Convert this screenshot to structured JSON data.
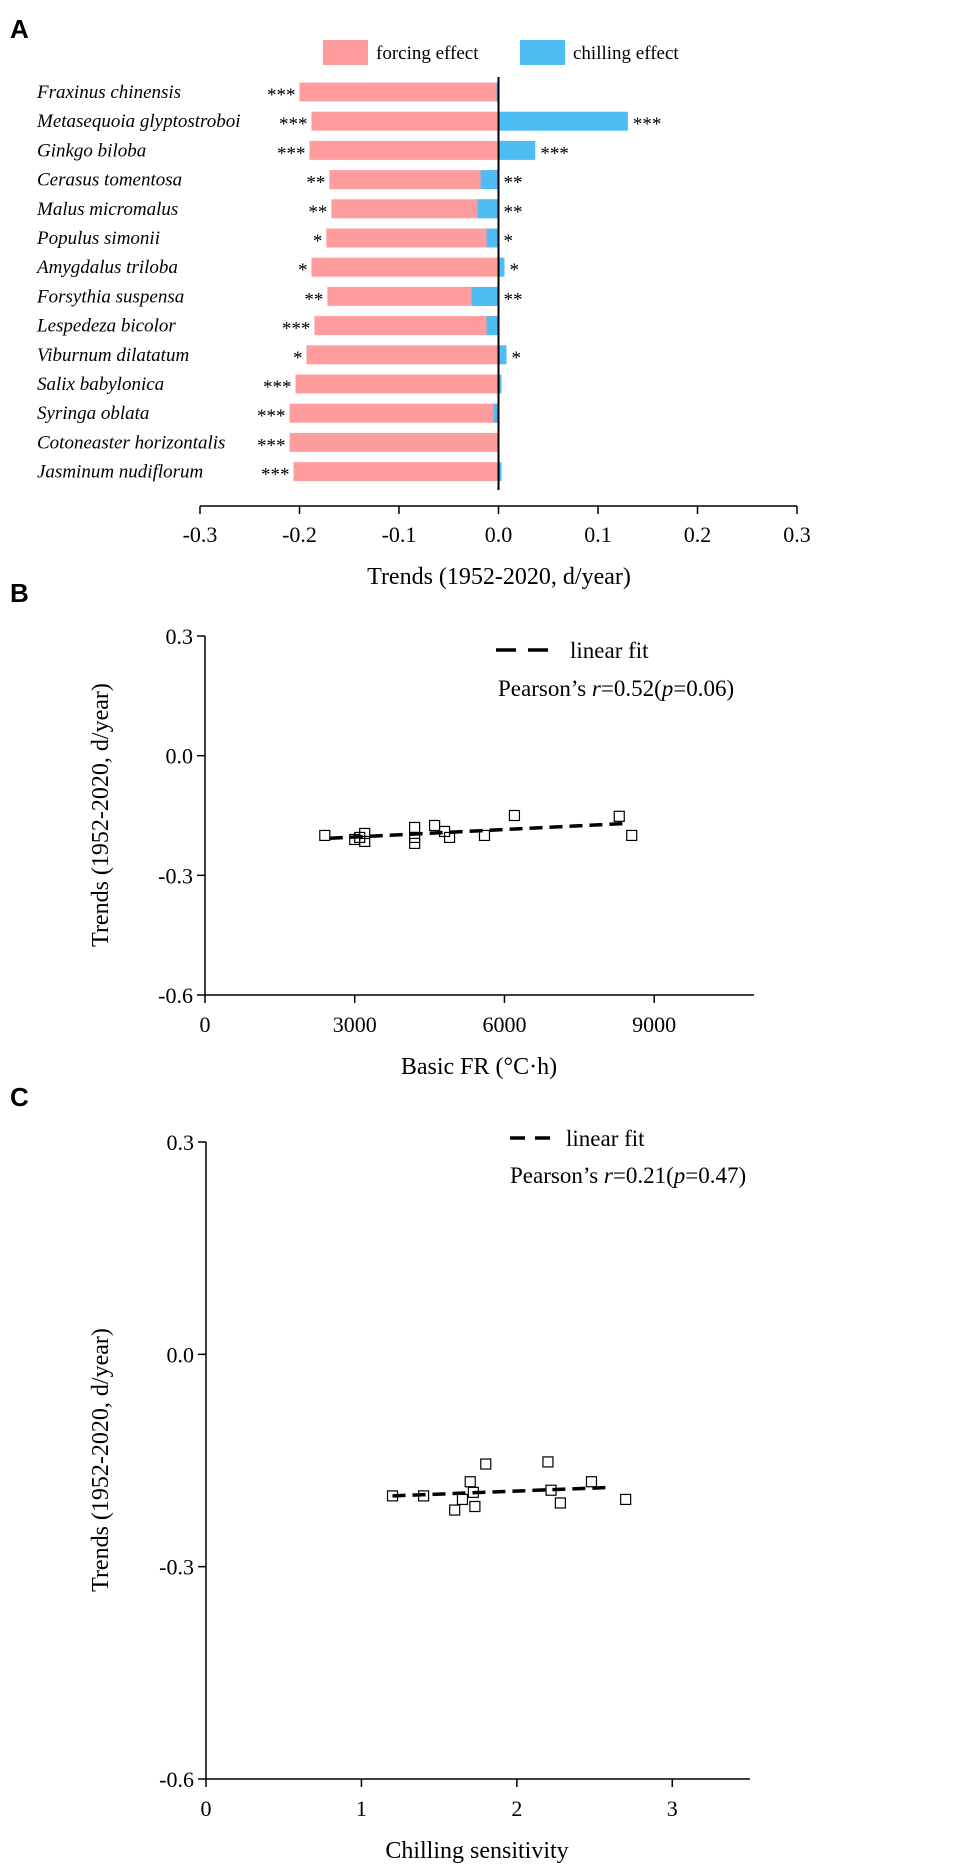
{
  "colors": {
    "forcing": "#FF9C9E",
    "chilling": "#4DBDF4",
    "axis": "#000000"
  },
  "panels": [
    {
      "label": "A",
      "chart_data": {
        "type": "bar",
        "orientation": "horizontal",
        "stacked": true,
        "categories": [
          "Fraxinus chinensis",
          "Metasequoia glyptostroboi",
          "Ginkgo biloba",
          "Cerasus tomentosa",
          "Malus micromalus",
          "Populus simonii",
          "Amygdalus triloba",
          "Forsythia suspensa",
          "Lespedeza bicolor",
          "Viburnum dilatatum",
          "Salix babylonica",
          "Syringa oblata",
          "Cotoneaster horizontalis",
          "Jasminum nudiflorum"
        ],
        "series": [
          {
            "name": "forcing effect",
            "color": "#FF9C9E",
            "values": [
              -0.2,
              -0.188,
              -0.19,
              -0.17,
              -0.168,
              -0.173,
              -0.188,
              -0.172,
              -0.185,
              -0.193,
              -0.204,
              -0.21,
              -0.21,
              -0.206
            ]
          },
          {
            "name": "chilling effect",
            "color": "#4DBDF4",
            "values": [
              -0.002,
              0.13,
              0.037,
              -0.018,
              -0.021,
              -0.012,
              0.006,
              -0.027,
              -0.012,
              0.008,
              0.003,
              -0.005,
              0.001,
              0.003
            ]
          }
        ],
        "significance": [
          "***",
          "***",
          "***",
          "**",
          "**",
          "*",
          "*",
          "**",
          "***",
          "*",
          "***",
          "***",
          "***",
          "***"
        ],
        "chilling_significance": [
          "",
          "***",
          "***",
          "**",
          "**",
          "*",
          "*",
          "**",
          "",
          "*",
          "",
          "",
          "",
          ""
        ],
        "xlabel": "Trends (1952-2020, d/year)",
        "xlim": [
          -0.3,
          0.3
        ],
        "xticks": [
          "-0.3",
          "-0.2",
          "-0.1",
          "0.0",
          "0.1",
          "0.2",
          "0.3"
        ],
        "legend": [
          "forcing effect",
          "chilling effect"
        ],
        "legend_position": "top-right"
      }
    },
    {
      "label": "B",
      "chart_data": {
        "type": "scatter",
        "x": [
          2400,
          3000,
          3100,
          3200,
          3200,
          4200,
          4200,
          4200,
          4600,
          4800,
          4900,
          5600,
          6200,
          8300,
          8550
        ],
        "y": [
          -0.2,
          -0.21,
          -0.205,
          -0.215,
          -0.195,
          -0.18,
          -0.205,
          -0.22,
          -0.175,
          -0.19,
          -0.205,
          -0.2,
          -0.15,
          -0.152,
          -0.2
        ],
        "fit": {
          "x": [
            2500,
            8400
          ],
          "y": [
            -0.207,
            -0.17
          ]
        },
        "legend_label": "linear fit",
        "annotation_prefix": "Pearson’s ",
        "annotation_r": "r",
        "annotation_mid": "=0.52(",
        "annotation_p": "p",
        "annotation_suffix": "=0.06)",
        "xlabel": "Basic FR (°C·h)",
        "ylabel": "Trends (1952-2020, d/year)",
        "xlim": [
          0,
          11000
        ],
        "ylim": [
          -0.6,
          0.3
        ],
        "xticks": [
          "0",
          "3000",
          "6000",
          "9000"
        ],
        "yticks": [
          "0.3",
          "0.0",
          "-0.3",
          "-0.6"
        ]
      }
    },
    {
      "label": "C",
      "chart_data": {
        "type": "scatter",
        "x": [
          1.2,
          1.4,
          1.6,
          1.65,
          1.7,
          1.72,
          1.73,
          1.8,
          2.2,
          2.22,
          2.28,
          2.48,
          2.7
        ],
        "y": [
          -0.2,
          -0.2,
          -0.22,
          -0.205,
          -0.18,
          -0.195,
          -0.215,
          -0.155,
          -0.152,
          -0.192,
          -0.21,
          -0.18,
          -0.205
        ],
        "fit": {
          "x": [
            1.2,
            2.6
          ],
          "y": [
            -0.2,
            -0.188
          ]
        },
        "legend_label": "linear fit",
        "annotation_prefix": "Pearson’s ",
        "annotation_r": "r",
        "annotation_mid": "=0.21(",
        "annotation_p": "p",
        "annotation_suffix": "=0.47)",
        "xlabel": "Chilling sensitivity",
        "ylabel": "Trends (1952-2020, d/year)",
        "xlim": [
          0,
          3.5
        ],
        "ylim": [
          -0.6,
          0.3
        ],
        "xticks": [
          "0",
          "1",
          "2",
          "3"
        ],
        "yticks": [
          "0.3",
          "0.0",
          "-0.3",
          "-0.6"
        ]
      }
    }
  ]
}
